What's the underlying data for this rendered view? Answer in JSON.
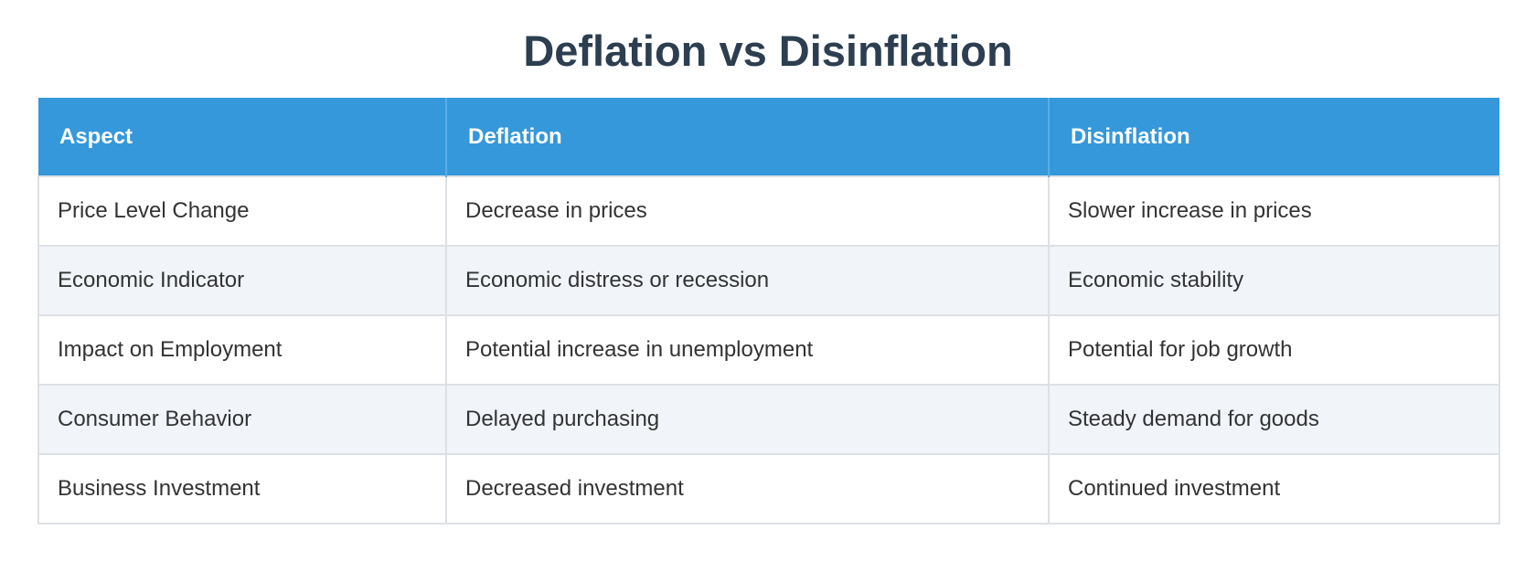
{
  "header": {
    "title": "Deflation vs Disinflation"
  },
  "table": {
    "columns": [
      "Aspect",
      "Deflation",
      "Disinflation"
    ],
    "rows": [
      [
        "Price Level Change",
        "Decrease in prices",
        "Slower increase in prices"
      ],
      [
        "Economic Indicator",
        "Economic distress or recession",
        "Economic stability"
      ],
      [
        "Impact on Employment",
        "Potential increase in unemployment",
        "Potential for job growth"
      ],
      [
        "Consumer Behavior",
        "Delayed purchasing",
        "Steady demand for goods"
      ],
      [
        "Business Investment",
        "Decreased investment",
        "Continued investment"
      ]
    ]
  }
}
